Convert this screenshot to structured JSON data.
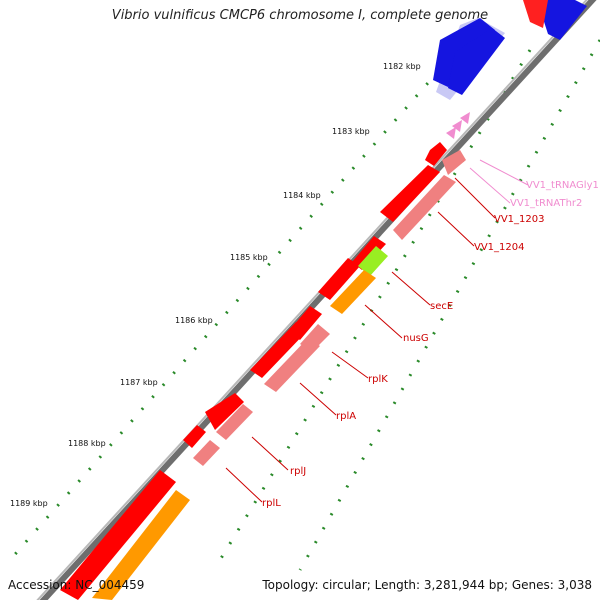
{
  "title": "Vibrio vulnificus CMCP6 chromosome I, complete genome",
  "accession": "Accession: NC_004459",
  "topology": "Topology: circular; Length: 3,281,944 bp; Genes: 3,038",
  "kbp_labels": [
    "1182 kbp",
    "1183 kbp",
    "1184 kbp",
    "1185 kbp",
    "1186 kbp",
    "1187 kbp",
    "1188 kbp",
    "1189 kbp"
  ],
  "gene_labels": [
    {
      "text": "VV1_tRNAGly1",
      "color": "#f08ccf"
    },
    {
      "text": "VV1_tRNAThr2",
      "color": "#f08ccf"
    },
    {
      "text": "VV1_1203",
      "color": "#cc0000"
    },
    {
      "text": "VV1_1204",
      "color": "#cc0000"
    },
    {
      "text": "secE",
      "color": "#cc0000"
    },
    {
      "text": "nusG",
      "color": "#cc0000"
    },
    {
      "text": "rplK",
      "color": "#cc0000"
    },
    {
      "text": "rplA",
      "color": "#cc0000"
    },
    {
      "text": "rplJ",
      "color": "#cc0000"
    },
    {
      "text": "rplL",
      "color": "#cc0000"
    }
  ],
  "colors": {
    "backbone": "#7a7a7a",
    "cds": "#ff0000",
    "cds_light": "#f08080",
    "trna": "#f08ccf",
    "blast_blue": "#1010e0",
    "orange": "#ff9900",
    "lime": "#99ee22",
    "tick": "#227722"
  }
}
